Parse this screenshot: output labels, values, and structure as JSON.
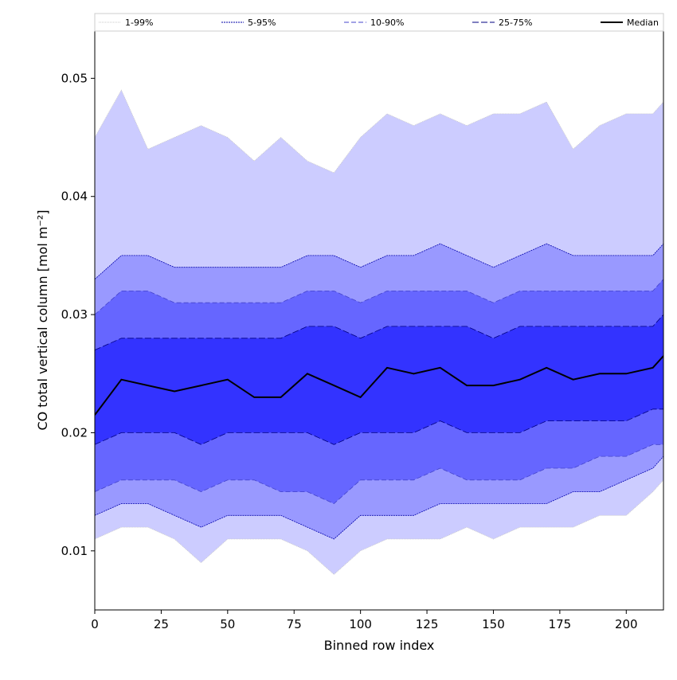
{
  "chart_data": {
    "type": "area",
    "xlabel": "Binned row index",
    "ylabel": "CO total vertical column [mol m⁻²]",
    "xlim": [
      0,
      214
    ],
    "ylim": [
      0.005,
      0.054
    ],
    "x_ticks": [
      0,
      25,
      50,
      75,
      100,
      125,
      150,
      175,
      200
    ],
    "x_tick_labels": [
      "0",
      "25",
      "50",
      "75",
      "100",
      "125",
      "150",
      "175",
      "200"
    ],
    "y_ticks": [
      0.01,
      0.02,
      0.03,
      0.04,
      0.05
    ],
    "y_tick_labels": [
      "0.01",
      "0.02",
      "0.03",
      "0.04",
      "0.05"
    ],
    "grid": false,
    "legend_position": "top",
    "legend": [
      "1-99%",
      "5-95%",
      "10-90%",
      "25-75%",
      "Median"
    ],
    "x": [
      0,
      10,
      20,
      30,
      40,
      50,
      60,
      70,
      80,
      90,
      100,
      110,
      120,
      130,
      140,
      150,
      160,
      170,
      180,
      190,
      200,
      210,
      214
    ],
    "series": [
      {
        "name": "1-99%",
        "color": "#ccccff",
        "line_color": "#c8c8c8",
        "dash": "1,1",
        "lower": [
          0.011,
          0.012,
          0.012,
          0.011,
          0.009,
          0.011,
          0.011,
          0.011,
          0.01,
          0.008,
          0.01,
          0.011,
          0.011,
          0.011,
          0.012,
          0.011,
          0.012,
          0.012,
          0.012,
          0.013,
          0.013,
          0.015,
          0.016
        ],
        "upper": [
          0.045,
          0.049,
          0.044,
          0.045,
          0.046,
          0.045,
          0.043,
          0.045,
          0.043,
          0.042,
          0.045,
          0.047,
          0.046,
          0.047,
          0.046,
          0.047,
          0.047,
          0.048,
          0.044,
          0.046,
          0.047,
          0.047,
          0.048
        ]
      },
      {
        "name": "5-95%",
        "color": "#9999ff",
        "line_color": "#0000aa",
        "dash": "2,1",
        "lower": [
          0.013,
          0.014,
          0.014,
          0.013,
          0.012,
          0.013,
          0.013,
          0.013,
          0.012,
          0.011,
          0.013,
          0.013,
          0.013,
          0.014,
          0.014,
          0.014,
          0.014,
          0.014,
          0.015,
          0.015,
          0.016,
          0.017,
          0.018
        ],
        "upper": [
          0.033,
          0.035,
          0.035,
          0.034,
          0.034,
          0.034,
          0.034,
          0.034,
          0.035,
          0.035,
          0.034,
          0.035,
          0.035,
          0.036,
          0.035,
          0.034,
          0.035,
          0.036,
          0.035,
          0.035,
          0.035,
          0.035,
          0.036
        ]
      },
      {
        "name": "10-90%",
        "color": "#6666ff",
        "line_color": "#4444cc",
        "dash": "6,3",
        "lower": [
          0.015,
          0.016,
          0.016,
          0.016,
          0.015,
          0.016,
          0.016,
          0.015,
          0.015,
          0.014,
          0.016,
          0.016,
          0.016,
          0.017,
          0.016,
          0.016,
          0.016,
          0.017,
          0.017,
          0.018,
          0.018,
          0.019,
          0.019
        ],
        "upper": [
          0.03,
          0.032,
          0.032,
          0.031,
          0.031,
          0.031,
          0.031,
          0.031,
          0.032,
          0.032,
          0.031,
          0.032,
          0.032,
          0.032,
          0.032,
          0.031,
          0.032,
          0.032,
          0.032,
          0.032,
          0.032,
          0.032,
          0.033
        ]
      },
      {
        "name": "25-75%",
        "color": "#3333ff",
        "line_color": "#000080",
        "dash": "8,3",
        "lower": [
          0.019,
          0.02,
          0.02,
          0.02,
          0.019,
          0.02,
          0.02,
          0.02,
          0.02,
          0.019,
          0.02,
          0.02,
          0.02,
          0.021,
          0.02,
          0.02,
          0.02,
          0.021,
          0.021,
          0.021,
          0.021,
          0.022,
          0.022
        ],
        "upper": [
          0.027,
          0.028,
          0.028,
          0.028,
          0.028,
          0.028,
          0.028,
          0.028,
          0.029,
          0.029,
          0.028,
          0.029,
          0.029,
          0.029,
          0.029,
          0.028,
          0.029,
          0.029,
          0.029,
          0.029,
          0.029,
          0.029,
          0.03
        ]
      }
    ],
    "median": {
      "name": "Median",
      "color": "#000000",
      "values": [
        0.0215,
        0.0245,
        0.024,
        0.0235,
        0.024,
        0.0245,
        0.023,
        0.023,
        0.025,
        0.024,
        0.023,
        0.0255,
        0.025,
        0.0255,
        0.024,
        0.024,
        0.0245,
        0.0255,
        0.0245,
        0.025,
        0.025,
        0.0255,
        0.0265
      ]
    }
  }
}
